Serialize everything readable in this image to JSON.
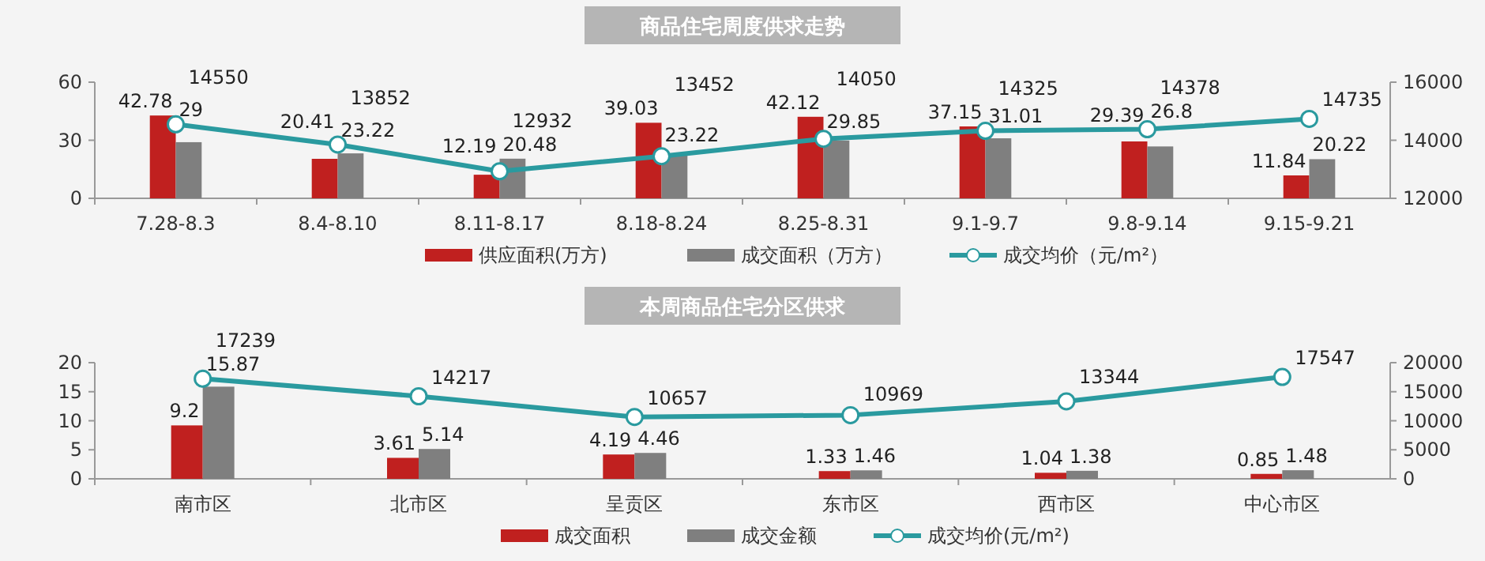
{
  "chart_data": [
    {
      "type": "bar",
      "title": "商品住宅周度供求走势",
      "categories": [
        "7.28-8.3",
        "8.4-8.10",
        "8.11-8.17",
        "8.18-8.24",
        "8.25-8.31",
        "9.1-9.7",
        "9.8-9.14",
        "9.15-9.21"
      ],
      "series": [
        {
          "name": "供应面积(万方)",
          "color": "#c0201f",
          "values": [
            42.78,
            20.41,
            12.19,
            39.03,
            42.12,
            37.15,
            29.39,
            11.84
          ]
        },
        {
          "name": "成交面积（万方）",
          "color": "#7f7f7f",
          "values": [
            29,
            23.22,
            20.48,
            23.22,
            29.85,
            31.01,
            26.8,
            20.22
          ]
        },
        {
          "name": "成交均价（元/m²）",
          "type": "line",
          "axis": "y2",
          "color": "#2a9a9f",
          "marker": "circle",
          "values": [
            14550,
            13852,
            12932,
            13452,
            14050,
            14325,
            14378,
            14735
          ]
        }
      ],
      "ylim": [
        0,
        60
      ],
      "yticks": [
        0,
        30,
        60
      ],
      "y2lim": [
        12000,
        16000
      ],
      "y2ticks": [
        12000,
        14000,
        16000
      ],
      "data_labels": true,
      "legend": "bottom",
      "grid": false
    },
    {
      "type": "bar",
      "title": "本周商品住宅分区供求",
      "categories": [
        "南市区",
        "北市区",
        "呈贡区",
        "东市区",
        "西市区",
        "中心市区"
      ],
      "series": [
        {
          "name": "成交面积",
          "color": "#c0201f",
          "values": [
            9.2,
            3.61,
            4.19,
            1.33,
            1.04,
            0.85
          ]
        },
        {
          "name": "成交金额",
          "color": "#7f7f7f",
          "values": [
            15.87,
            5.14,
            4.46,
            1.46,
            1.38,
            1.48
          ]
        },
        {
          "name": "成交均价(元/m²)",
          "type": "line",
          "axis": "y2",
          "color": "#2a9a9f",
          "marker": "circle",
          "values": [
            17239,
            14217,
            10657,
            10969,
            13344,
            17547
          ]
        }
      ],
      "ylim": [
        0,
        20
      ],
      "yticks": [
        0,
        5,
        10,
        15,
        20
      ],
      "y2lim": [
        0,
        20000
      ],
      "y2ticks": [
        0,
        5000,
        10000,
        15000,
        20000
      ],
      "data_labels": true,
      "legend": "bottom",
      "grid": false
    }
  ]
}
